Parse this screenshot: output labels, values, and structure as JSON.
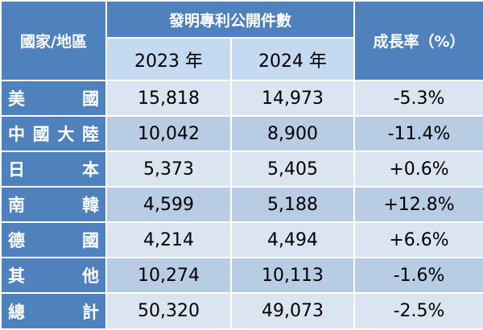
{
  "header": {
    "region": "國家/地區",
    "count": "發明專利公開件數",
    "year_2023": "2023 年",
    "year_2024": "2024 年",
    "growth": "成長率（%）"
  },
  "rows": [
    {
      "label_chars": [
        "美",
        "國"
      ],
      "y2023": "15,818",
      "y2024": "14,973",
      "growth": "-5.3%"
    },
    {
      "label_chars": [
        "中",
        "國",
        "大",
        "陸"
      ],
      "y2023": "10,042",
      "y2024": "8,900",
      "growth": "-11.4%"
    },
    {
      "label_chars": [
        "日",
        "本"
      ],
      "y2023": "5,373",
      "y2024": "5,405",
      "growth": "+0.6%"
    },
    {
      "label_chars": [
        "南",
        "韓"
      ],
      "y2023": "4,599",
      "y2024": "5,188",
      "growth": "+12.8%"
    },
    {
      "label_chars": [
        "德",
        "國"
      ],
      "y2023": "4,214",
      "y2024": "4,494",
      "growth": "+6.6%"
    },
    {
      "label_chars": [
        "其",
        "他"
      ],
      "y2023": "10,274",
      "y2024": "10,113",
      "growth": "-1.6%"
    },
    {
      "label_chars": [
        "總",
        "計"
      ],
      "y2023": "50,320",
      "y2024": "49,073",
      "growth": "-2.5%"
    }
  ]
}
